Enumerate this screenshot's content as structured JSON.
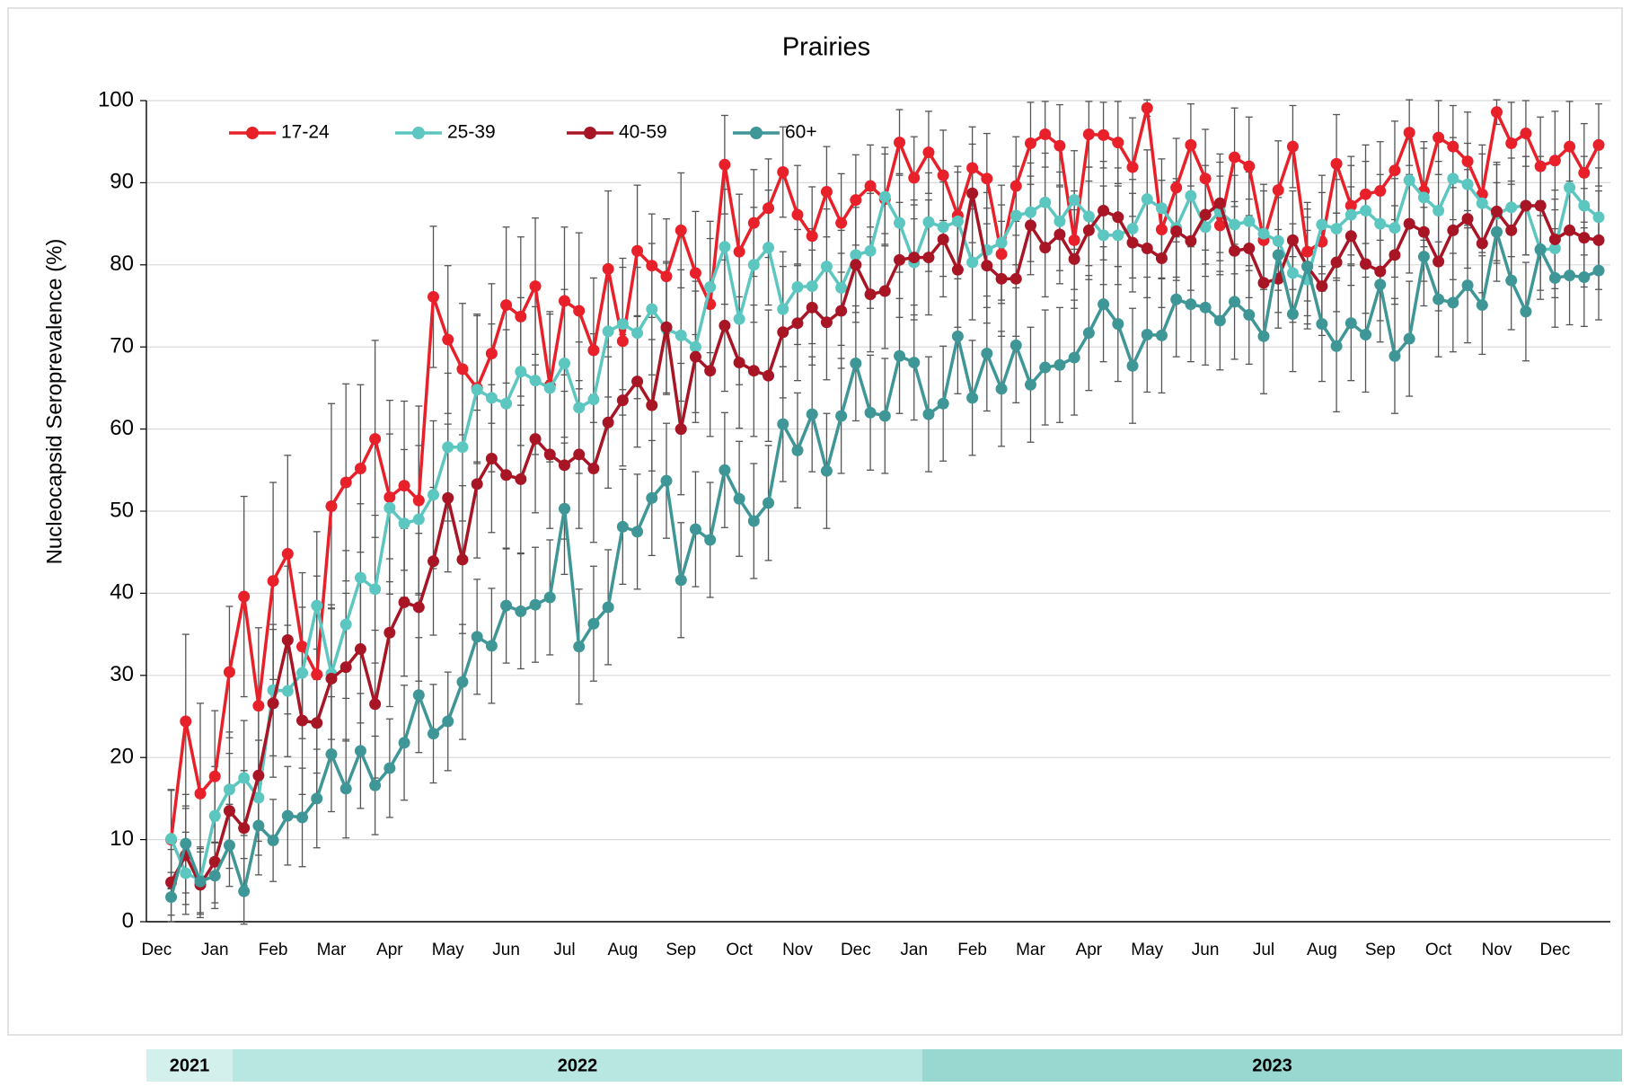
{
  "chart_data": {
    "type": "line",
    "title": "Prairies",
    "ylabel": "Nucleocapsid Seroprevalence (%)",
    "categories": [
      "Dec",
      null,
      null,
      null,
      "Jan",
      null,
      null,
      null,
      "Feb",
      null,
      null,
      null,
      "Mar",
      null,
      null,
      null,
      "Apr",
      null,
      null,
      null,
      "May",
      null,
      null,
      null,
      "Jun",
      null,
      null,
      null,
      "Jul",
      null,
      null,
      null,
      "Aug",
      null,
      null,
      null,
      "Sep",
      null,
      null,
      null,
      "Oct",
      null,
      null,
      null,
      "Nov",
      null,
      null,
      null,
      "Dec",
      null,
      null,
      null,
      "Jan",
      null,
      null,
      null,
      "Feb",
      null,
      null,
      null,
      "Mar",
      null,
      null,
      null,
      "Apr",
      null,
      null,
      null,
      "May",
      null,
      null,
      null,
      "Jun",
      null,
      null,
      null,
      "Jul",
      null,
      null,
      null,
      "Aug",
      null,
      null,
      null,
      "Sep",
      null,
      null,
      null,
      "Oct",
      null,
      null,
      null,
      "Nov",
      null,
      null,
      null,
      "Dec",
      null,
      null
    ],
    "series": [
      {
        "name": "17-24",
        "color": "#e8202a",
        "values": [
          10,
          24.4,
          15.6,
          17.7,
          30.4,
          39.6,
          26.3,
          41.5,
          44.8,
          33.5,
          30.1,
          50.6,
          53.5,
          55.2,
          58.8,
          51.7,
          53.1,
          51.3,
          76.1,
          70.9,
          67.3,
          65,
          69.2,
          75.1,
          73.7,
          77.4,
          65.3,
          75.6,
          74.4,
          69.6,
          79.5,
          70.7,
          81.7,
          79.9,
          78.6,
          84.2,
          79,
          75.2,
          92.2,
          81.6,
          85.1,
          86.9,
          91.3,
          86.1,
          83.5,
          88.9,
          85.1,
          87.9,
          89.6,
          88,
          94.9,
          90.6,
          93.7,
          90.9,
          86,
          91.8,
          90.5,
          81.3,
          89.6,
          94.8,
          95.9,
          94.5,
          83,
          95.9,
          95.8,
          94.9,
          91.9,
          99.1,
          84.3,
          89.4,
          94.6,
          90.5,
          84.8,
          93.1,
          92,
          83,
          89.1,
          94.4,
          81.6,
          82.8,
          92.3,
          87.2,
          88.6,
          89,
          91.5,
          96.1,
          89,
          95.5,
          94.4,
          92.6,
          88.6,
          98.6,
          94.8,
          96,
          92,
          92.7,
          94.4,
          91.2,
          94.6
        ],
        "errors": [
          6,
          10.6,
          11,
          8,
          8,
          12.2,
          9.5,
          12,
          12,
          9,
          12,
          12.5,
          12,
          10.2,
          12,
          11.8,
          10.3,
          11.5,
          8.6,
          9,
          8,
          9,
          8.5,
          9.5,
          9.7,
          8.3,
          9,
          9,
          9.5,
          8.8,
          9.5,
          9,
          8,
          6.3,
          7,
          7,
          7.5,
          8,
          6,
          7,
          6.5,
          6,
          5.5,
          6,
          6,
          5.5,
          6,
          5.5,
          5,
          5.5,
          4,
          5,
          5,
          5.5,
          6,
          5,
          5.5,
          6,
          6,
          5,
          4,
          5,
          6,
          4,
          4,
          5,
          6,
          1,
          6,
          6,
          5,
          6,
          6,
          6,
          6,
          6,
          6,
          5,
          6,
          6,
          6,
          6,
          6,
          6,
          6,
          4,
          6,
          4.5,
          5,
          6,
          6,
          1.5,
          5,
          4,
          6,
          6,
          5.5,
          6,
          5
        ]
      },
      {
        "name": "25-39",
        "color": "#5cc6c0",
        "values": [
          10.1,
          5.9,
          5.1,
          12.9,
          16.1,
          17.5,
          15.1,
          28.2,
          28.1,
          30.3,
          38.5,
          30.2,
          36.2,
          41.9,
          40.5,
          50.4,
          48.5,
          49,
          52,
          57.8,
          57.8,
          64.8,
          63.8,
          63.1,
          67,
          65.9,
          65,
          68,
          62.6,
          63.6,
          71.9,
          72.8,
          71.7,
          74.6,
          72.2,
          71.4,
          70,
          77.3,
          82.2,
          73.4,
          80,
          82.1,
          74.6,
          77.3,
          77.4,
          79.8,
          77.2,
          81.2,
          81.7,
          88.3,
          85.1,
          80.3,
          85.2,
          84.6,
          85.3,
          80.3,
          81.8,
          82.7,
          86,
          86.4,
          87.6,
          85.3,
          87.9,
          85.9,
          83.6,
          83.6,
          84.4,
          88,
          86.9,
          84.5,
          88.4,
          84.6,
          86.5,
          84.9,
          85.3,
          83.8,
          82.9,
          79,
          78.2,
          84.9,
          84.4,
          86.1,
          86.6,
          85,
          84.5,
          90.3,
          88.2,
          86.6,
          90.5,
          89.8,
          87.5,
          86.2,
          87,
          87.2,
          81.8,
          82,
          89.4,
          87.2,
          85.8
        ],
        "errors": [
          6,
          5,
          4,
          6,
          7,
          7,
          7,
          8,
          8,
          8,
          9,
          8,
          9,
          9,
          9,
          9,
          9,
          9,
          9,
          9,
          9,
          9,
          9,
          9,
          9,
          9,
          9,
          9,
          8,
          8,
          8,
          8,
          8,
          8,
          8,
          8,
          8,
          8,
          7,
          8,
          7,
          7,
          7,
          7,
          7,
          7,
          7,
          7,
          7,
          6,
          6,
          7,
          6,
          6,
          6,
          7,
          7,
          7,
          6,
          6,
          6,
          6,
          6,
          6,
          6,
          6,
          6,
          6,
          6,
          6,
          6,
          6,
          6,
          6,
          6,
          6,
          6,
          6,
          6,
          6,
          6,
          6,
          6,
          6,
          6,
          5,
          6,
          6,
          5,
          5,
          6,
          6,
          6,
          6,
          6,
          6,
          5,
          6,
          6
        ]
      },
      {
        "name": "40-59",
        "color": "#a81525",
        "values": [
          4.8,
          8.1,
          4.5,
          7.3,
          13.5,
          11.4,
          17.8,
          26.6,
          34.3,
          24.5,
          24.2,
          29.6,
          31,
          33.2,
          26.5,
          35.2,
          38.9,
          38.3,
          43.9,
          51.6,
          44.1,
          53.3,
          56.4,
          54.4,
          53.9,
          58.8,
          56.9,
          55.6,
          56.9,
          55.2,
          60.8,
          63.5,
          65.8,
          62.9,
          72.4,
          60,
          68.8,
          67.1,
          72.6,
          68.1,
          67.1,
          66.5,
          71.8,
          72.9,
          74.8,
          73,
          74.4,
          80,
          76.4,
          76.8,
          80.6,
          80.9,
          80.9,
          83.1,
          79.4,
          88.7,
          79.9,
          78.3,
          78.3,
          84.8,
          82.1,
          83.7,
          80.7,
          84.2,
          86.6,
          85.8,
          82.7,
          82,
          80.8,
          84.1,
          82.9,
          86.1,
          87.5,
          81.7,
          82,
          77.8,
          78.3,
          83,
          79.8,
          77.4,
          80.3,
          83.5,
          80.1,
          79.2,
          81.2,
          85,
          84,
          80.4,
          84.2,
          85.6,
          82.6,
          86.5,
          84.2,
          87.2,
          87.2,
          83.1,
          84.2,
          83.3,
          83
        ],
        "errors": [
          4,
          6,
          4,
          5,
          7,
          7,
          8,
          9,
          9,
          9,
          9,
          9,
          9,
          9,
          9,
          9,
          9,
          9,
          9,
          9,
          9,
          9,
          9,
          9,
          9,
          9,
          9,
          9,
          9,
          9,
          8,
          8,
          8,
          8,
          8,
          8,
          8,
          8,
          8,
          8,
          8,
          8,
          8,
          7,
          7,
          7,
          7,
          7,
          7,
          7,
          7,
          7,
          7,
          7,
          7,
          6,
          7,
          7,
          7,
          6,
          6,
          6,
          6,
          6,
          6,
          6,
          6,
          6,
          6,
          6,
          6,
          6,
          6,
          6,
          6,
          6,
          6,
          6,
          6,
          6,
          6,
          6,
          6,
          6,
          6,
          6,
          6,
          6,
          6,
          6,
          6,
          6,
          6,
          6,
          6,
          6,
          6,
          6,
          6
        ]
      },
      {
        "name": "60+",
        "color": "#3e9696",
        "values": [
          3,
          9.5,
          4.9,
          5.6,
          9.3,
          3.7,
          11.7,
          9.9,
          12.9,
          12.7,
          15,
          20.4,
          16.2,
          20.8,
          16.6,
          18.7,
          21.8,
          27.6,
          22.9,
          24.4,
          29.2,
          34.7,
          33.6,
          38.5,
          37.8,
          38.6,
          39.5,
          50.3,
          33.5,
          36.3,
          38.3,
          48.1,
          47.5,
          51.6,
          53.7,
          41.6,
          47.8,
          46.5,
          55,
          51.5,
          48.8,
          51,
          60.6,
          57.4,
          61.8,
          54.9,
          61.6,
          68,
          62,
          61.6,
          68.9,
          68.1,
          61.8,
          63.1,
          71.3,
          63.8,
          69.2,
          64.9,
          70.2,
          65.4,
          67.5,
          67.8,
          68.7,
          71.7,
          75.2,
          72.8,
          67.7,
          71.5,
          71.4,
          75.8,
          75.2,
          74.8,
          73.2,
          75.5,
          73.9,
          71.3,
          81.2,
          74,
          79.8,
          72.8,
          70.1,
          72.9,
          71.5,
          77.6,
          68.9,
          71,
          81,
          75.8,
          75.4,
          77.5,
          75.1,
          84,
          78.1,
          74.3,
          81.9,
          78.4,
          78.7,
          78.5,
          79.3
        ],
        "errors": [
          3,
          6,
          4,
          4,
          5,
          4,
          6,
          5,
          6,
          6,
          6,
          7,
          6,
          7,
          6,
          6,
          7,
          7,
          6,
          6,
          7,
          7,
          7,
          7,
          7,
          7,
          7,
          8,
          7,
          7,
          7,
          7,
          7,
          7,
          7,
          7,
          7,
          7,
          7,
          7,
          7,
          7,
          7,
          7,
          7,
          7,
          7,
          7,
          7,
          7,
          7,
          7,
          7,
          7,
          7,
          7,
          7,
          7,
          7,
          7,
          7,
          7,
          7,
          7,
          7,
          7,
          7,
          7,
          7,
          7,
          7,
          7,
          6,
          7,
          6,
          7,
          7,
          7,
          7,
          7,
          8,
          7,
          7,
          7,
          7,
          7,
          6,
          7,
          6,
          7,
          6,
          6,
          6,
          6,
          5,
          6,
          6,
          6,
          6
        ]
      }
    ],
    "ylim": [
      0,
      100
    ],
    "yticks": [
      0,
      10,
      20,
      30,
      40,
      50,
      60,
      70,
      80,
      90,
      100
    ],
    "grid": true,
    "legend": "top-left",
    "year_bands": [
      {
        "label": "2021",
        "color": "#d3f0ed"
      },
      {
        "label": "2022",
        "color": "#b8e6e1"
      },
      {
        "label": "2023",
        "color": "#98d8d1"
      }
    ]
  }
}
